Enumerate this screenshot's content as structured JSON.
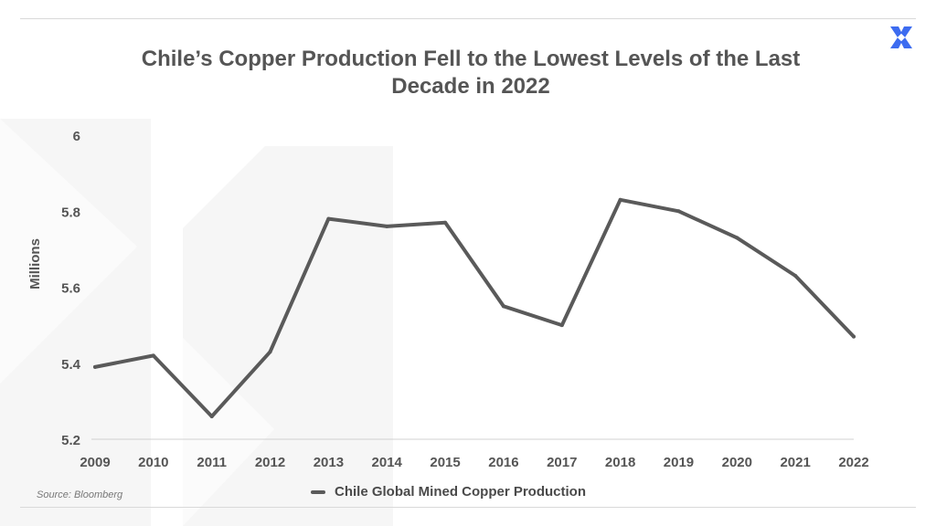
{
  "header": {
    "title_line1": "Chile’s Copper Production Fell to the Lowest Levels of the Last",
    "title_line2": "Decade in 2022",
    "logo_icon": "brand-x-logo-icon"
  },
  "footer": {
    "source": "Source: Bloomberg",
    "legend_label": "Chile Global Mined Copper Production"
  },
  "colors": {
    "line": "#5a5a5a",
    "text": "#555555",
    "logo": "#3d6cf0",
    "watermark": "#f5f5f5"
  },
  "chart_data": {
    "type": "line",
    "title": "Chile’s Copper Production Fell to the Lowest Levels of the Last Decade in 2022",
    "xlabel": "",
    "ylabel": "Millions",
    "ylim": [
      5.2,
      6
    ],
    "yticks": [
      "6",
      "5.8",
      "5.6",
      "5.4",
      "5.2"
    ],
    "ytick_values": [
      6,
      5.8,
      5.6,
      5.4,
      5.2
    ],
    "x": [
      "2009",
      "2010",
      "2011",
      "2012",
      "2013",
      "2014",
      "2015",
      "2016",
      "2017",
      "2018",
      "2019",
      "2020",
      "2021",
      "2022"
    ],
    "series": [
      {
        "name": "Chile Global Mined Copper Production",
        "values": [
          5.39,
          5.42,
          5.26,
          5.43,
          5.78,
          5.76,
          5.77,
          5.55,
          5.5,
          5.83,
          5.8,
          5.73,
          5.63,
          5.47
        ]
      }
    ],
    "grid": false,
    "legend": "bottom-center"
  }
}
